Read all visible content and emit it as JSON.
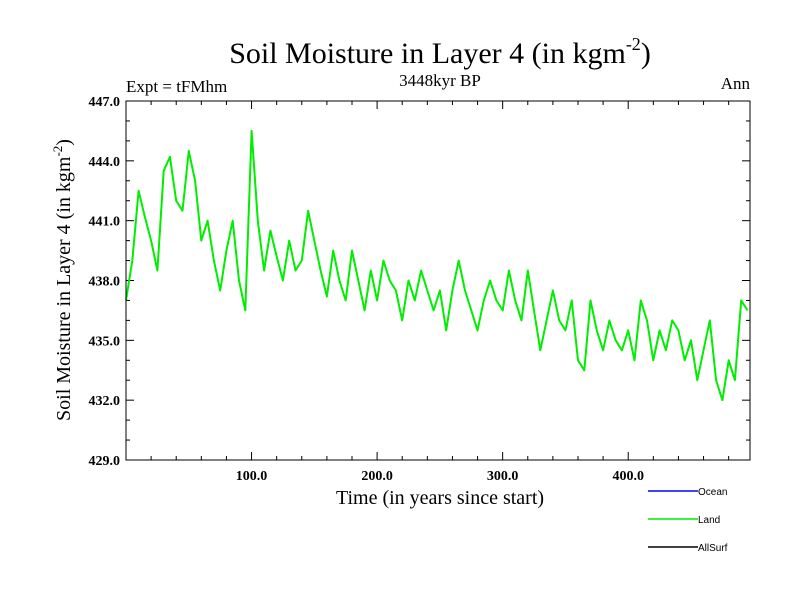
{
  "chart_data": {
    "type": "line",
    "title": "Soil Moisture in Layer 4 (in kgm",
    "title_sup": "-2",
    "title_tail": ")",
    "subtitle": "3448kyr BP",
    "left_label": "Expt = tFMhm",
    "right_label": "Ann",
    "xlabel": "Time (in years since start)",
    "ylabel": "Soil Moisture in Layer 4 (in kgm",
    "ylabel_sup": "-2",
    "ylabel_tail": ")",
    "xlim": [
      0,
      497
    ],
    "ylim": [
      429.0,
      447.0
    ],
    "x_ticks": [
      100,
      200,
      300,
      400
    ],
    "x_tick_labels": [
      "100.0",
      "200.0",
      "300.0",
      "400.0"
    ],
    "y_ticks": [
      429,
      432,
      435,
      438,
      441,
      444,
      447
    ],
    "y_tick_labels": [
      "429.0",
      "432.0",
      "435.0",
      "438.0",
      "441.0",
      "444.0",
      "447.0"
    ],
    "legend": [
      {
        "name": "Ocean",
        "color": "#0000ff"
      },
      {
        "name": "Land",
        "color": "#00ee00"
      },
      {
        "name": "AllSurf",
        "color": "#000000"
      }
    ],
    "series": [
      {
        "name": "Land",
        "color": "#00ee00",
        "x_start": 0,
        "x_step": 5,
        "values": [
          437.0,
          439.0,
          442.5,
          441.2,
          440.0,
          438.5,
          443.5,
          444.2,
          442.0,
          441.5,
          444.5,
          443.0,
          440.0,
          441.0,
          439.0,
          437.5,
          439.5,
          441.0,
          438.0,
          436.5,
          445.5,
          441.0,
          438.5,
          440.5,
          439.2,
          438.0,
          440.0,
          438.5,
          439.0,
          441.5,
          440.0,
          438.5,
          437.2,
          439.5,
          438.0,
          437.0,
          439.5,
          438.0,
          436.5,
          438.5,
          437.0,
          439.0,
          438.0,
          437.5,
          436.0,
          438.0,
          437.0,
          438.5,
          437.5,
          436.5,
          437.5,
          435.5,
          437.5,
          439.0,
          437.5,
          436.5,
          435.5,
          437.0,
          438.0,
          437.0,
          436.5,
          438.5,
          437.0,
          436.0,
          438.5,
          436.5,
          434.5,
          436.0,
          437.5,
          436.0,
          435.5,
          437.0,
          434.0,
          433.5,
          437.0,
          435.5,
          434.5,
          436.0,
          435.0,
          434.5,
          435.5,
          434.0,
          437.0,
          436.0,
          434.0,
          435.5,
          434.5,
          436.0,
          435.5,
          434.0,
          435.0,
          433.0,
          434.5,
          436.0,
          433.0,
          432.0,
          434.0,
          433.0,
          437.0,
          436.5
        ]
      }
    ]
  }
}
